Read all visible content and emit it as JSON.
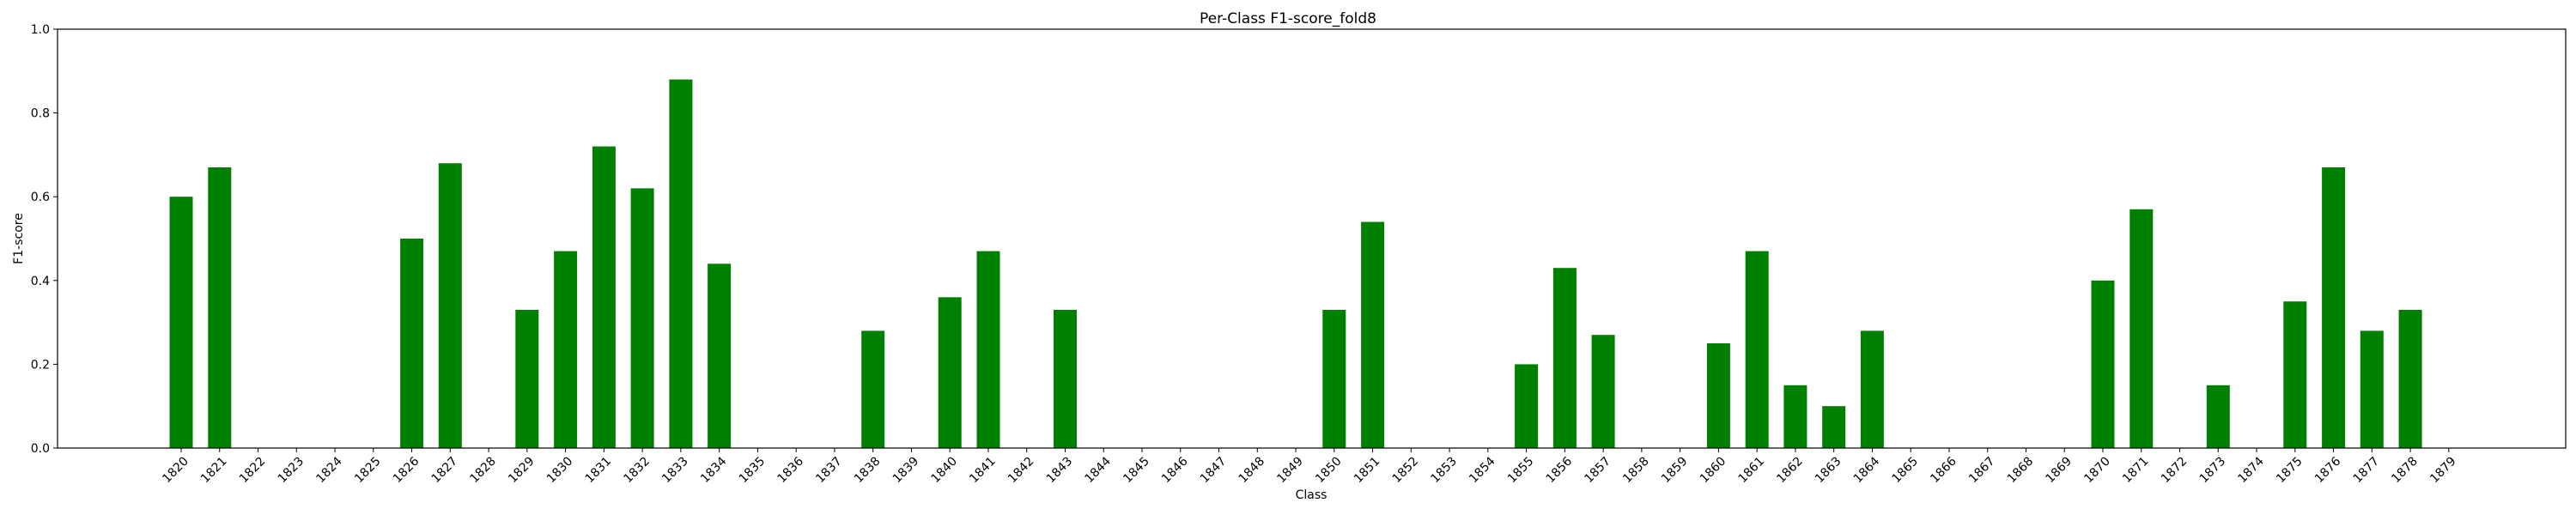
{
  "chart_data": {
    "type": "bar",
    "title": "Per-Class F1-score_fold8",
    "xlabel": "Class",
    "ylabel": "F1-score",
    "ylim": [
      0,
      1.0
    ],
    "yticks": [
      "0.0",
      "0.2",
      "0.4",
      "0.6",
      "0.8",
      "1.0"
    ],
    "grid": false,
    "bar_color": "#008000",
    "categories": [
      "1820",
      "1821",
      "1822",
      "1823",
      "1824",
      "1825",
      "1826",
      "1827",
      "1828",
      "1829",
      "1830",
      "1831",
      "1832",
      "1833",
      "1834",
      "1835",
      "1836",
      "1837",
      "1838",
      "1839",
      "1840",
      "1841",
      "1842",
      "1843",
      "1844",
      "1845",
      "1846",
      "1847",
      "1848",
      "1849",
      "1850",
      "1851",
      "1852",
      "1853",
      "1854",
      "1855",
      "1856",
      "1857",
      "1858",
      "1859",
      "1860",
      "1861",
      "1862",
      "1863",
      "1864",
      "1865",
      "1866",
      "1867",
      "1868",
      "1869",
      "1870",
      "1871",
      "1872",
      "1873",
      "1874",
      "1875",
      "1876",
      "1877",
      "1878",
      "1879"
    ],
    "values": [
      0.6,
      0.67,
      0,
      0,
      0,
      0,
      0.5,
      0.68,
      0,
      0.33,
      0.47,
      0.72,
      0.62,
      0.88,
      0.44,
      0,
      0,
      0,
      0.28,
      0,
      0.36,
      0.47,
      0,
      0.33,
      0,
      0,
      0,
      0,
      0,
      0,
      0.33,
      0.54,
      0,
      0,
      0,
      0.2,
      0.43,
      0.27,
      0,
      0,
      0.25,
      0.47,
      0.15,
      0.1,
      0.28,
      0,
      0,
      0,
      0,
      0,
      0.4,
      0.57,
      0,
      0.15,
      0,
      0.35,
      0.67,
      0.28,
      0.33,
      0
    ]
  }
}
